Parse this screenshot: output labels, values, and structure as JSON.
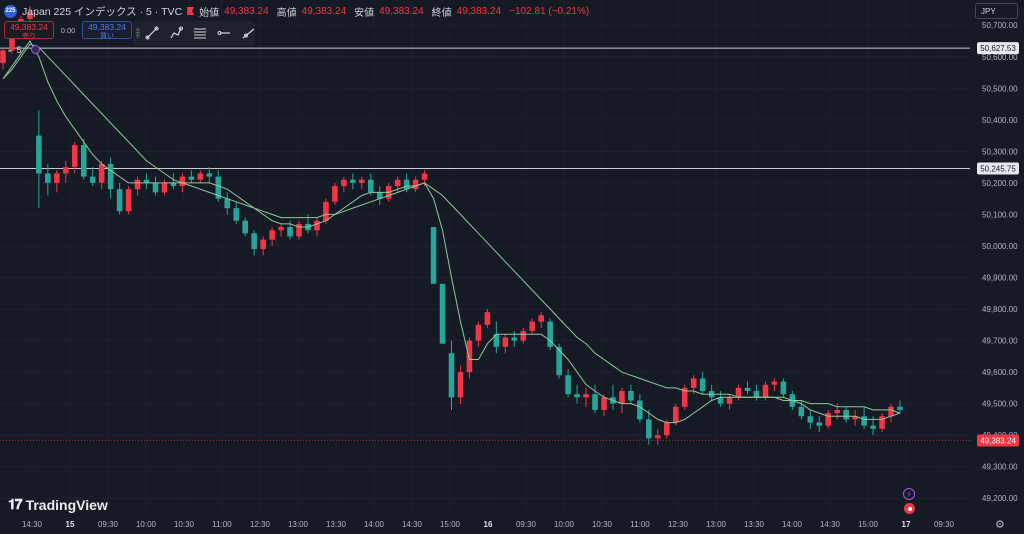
{
  "header": {
    "logo_text": "225",
    "symbol": "Japan 225 インデックス · 5 · TVC",
    "open_label": "始値",
    "open_value": "49,383.24",
    "high_label": "高値",
    "high_value": "49,383.24",
    "low_label": "安値",
    "low_value": "49,383.24",
    "close_label": "終値",
    "close_value": "49,383.24",
    "change": "−102.81 (−0.21%)"
  },
  "trade": {
    "sell_price": "49,383.24",
    "sell_label": "売り",
    "spread": "0.00",
    "buy_price": "49,383.24",
    "buy_label": "買い"
  },
  "indicator": {
    "label": "5"
  },
  "toolbar": {
    "tools": [
      "trend-line-icon",
      "path-icon",
      "fib-icon",
      "horizontal-ray-icon",
      "ray-icon"
    ]
  },
  "currency": "JPY",
  "brand": "TradingView",
  "colors": {
    "up": "#f23645",
    "down": "#26a69a",
    "ma": "#8fc79a",
    "bg": "#161a25"
  },
  "chart_data": {
    "type": "candlestick",
    "symbol": "Japan 225",
    "ylim": [
      49150,
      50780
    ],
    "y_ticks": [
      "50,700.00",
      "50,600.00",
      "50,500.00",
      "50,400.00",
      "50,300.00",
      "50,200.00",
      "50,100.00",
      "50,000.00",
      "49,900.00",
      "49,800.00",
      "49,700.00",
      "49,600.00",
      "49,500.00",
      "49,400.00",
      "49,300.00",
      "49,200.00"
    ],
    "x_ticks": [
      "14:30",
      "15",
      "09:30",
      "10:00",
      "10:30",
      "11:00",
      "12:30",
      "13:00",
      "13:30",
      "14:00",
      "14:30",
      "15:00",
      "16",
      "09:30",
      "10:00",
      "10:30",
      "11:00",
      "12:30",
      "13:00",
      "13:30",
      "14:00",
      "14:30",
      "15:00",
      "17",
      "09:30"
    ],
    "horizontal_lines": [
      {
        "value": 50627.53,
        "label": "50,627.53"
      },
      {
        "value": 50245.75,
        "label": "50,245.75"
      }
    ],
    "last_price": {
      "value": 49383.24,
      "label": "49,383.24"
    },
    "ohlc": [
      [
        50580,
        50630,
        50560,
        50620
      ],
      [
        50620,
        50690,
        50610,
        50680
      ],
      [
        50680,
        50730,
        50670,
        50720
      ],
      [
        50720,
        50760,
        50700,
        50740
      ],
      [
        50350,
        50430,
        50120,
        50230
      ],
      [
        50230,
        50260,
        50160,
        50200
      ],
      [
        50200,
        50240,
        50170,
        50230
      ],
      [
        50230,
        50270,
        50200,
        50250
      ],
      [
        50250,
        50330,
        50230,
        50320
      ],
      [
        50320,
        50340,
        50210,
        50220
      ],
      [
        50220,
        50250,
        50190,
        50200
      ],
      [
        50200,
        50270,
        50180,
        50260
      ],
      [
        50260,
        50280,
        50150,
        50180
      ],
      [
        50180,
        50200,
        50100,
        50110
      ],
      [
        50110,
        50190,
        50100,
        50180
      ],
      [
        50180,
        50220,
        50160,
        50210
      ],
      [
        50210,
        50230,
        50180,
        50200
      ],
      [
        50200,
        50220,
        50160,
        50170
      ],
      [
        50170,
        50210,
        50160,
        50200
      ],
      [
        50200,
        50230,
        50180,
        50190
      ],
      [
        50190,
        50230,
        50170,
        50220
      ],
      [
        50220,
        50240,
        50200,
        50210
      ],
      [
        50210,
        50240,
        50200,
        50230
      ],
      [
        50230,
        50250,
        50200,
        50220
      ],
      [
        50220,
        50240,
        50140,
        50150
      ],
      [
        50150,
        50170,
        50100,
        50120
      ],
      [
        50120,
        50140,
        50070,
        50080
      ],
      [
        50080,
        50090,
        50030,
        50040
      ],
      [
        50040,
        50050,
        49970,
        49990
      ],
      [
        49990,
        50030,
        49970,
        50020
      ],
      [
        50020,
        50060,
        50000,
        50050
      ],
      [
        50050,
        50070,
        50030,
        50060
      ],
      [
        50060,
        50080,
        50020,
        50030
      ],
      [
        50030,
        50080,
        50020,
        50070
      ],
      [
        50070,
        50100,
        50040,
        50050
      ],
      [
        50050,
        50090,
        50030,
        50080
      ],
      [
        50080,
        50150,
        50070,
        50140
      ],
      [
        50140,
        50200,
        50130,
        50190
      ],
      [
        50190,
        50220,
        50170,
        50210
      ],
      [
        50210,
        50230,
        50180,
        50200
      ],
      [
        50200,
        50220,
        50180,
        50210
      ],
      [
        50210,
        50230,
        50160,
        50170
      ],
      [
        50170,
        50190,
        50130,
        50150
      ],
      [
        50150,
        50200,
        50140,
        50190
      ],
      [
        50190,
        50220,
        50170,
        50210
      ],
      [
        50210,
        50230,
        50170,
        50180
      ],
      [
        50180,
        50220,
        50170,
        50210
      ],
      [
        50210,
        50240,
        50190,
        50230
      ],
      [
        50060,
        50060,
        49880,
        49880
      ],
      [
        49880,
        49880,
        49690,
        49690
      ],
      [
        49660,
        49700,
        49480,
        49520
      ],
      [
        49520,
        49620,
        49500,
        49600
      ],
      [
        49600,
        49710,
        49580,
        49700
      ],
      [
        49700,
        49760,
        49680,
        49750
      ],
      [
        49750,
        49800,
        49740,
        49790
      ],
      [
        49720,
        49760,
        49660,
        49680
      ],
      [
        49680,
        49720,
        49660,
        49710
      ],
      [
        49710,
        49730,
        49680,
        49700
      ],
      [
        49700,
        49740,
        49690,
        49730
      ],
      [
        49730,
        49770,
        49720,
        49760
      ],
      [
        49760,
        49790,
        49740,
        49780
      ],
      [
        49760,
        49770,
        49670,
        49680
      ],
      [
        49680,
        49690,
        49580,
        49590
      ],
      [
        49590,
        49610,
        49520,
        49530
      ],
      [
        49530,
        49560,
        49500,
        49520
      ],
      [
        49520,
        49550,
        49490,
        49530
      ],
      [
        49530,
        49560,
        49470,
        49480
      ],
      [
        49480,
        49530,
        49460,
        49520
      ],
      [
        49520,
        49560,
        49480,
        49500
      ],
      [
        49500,
        49550,
        49470,
        49540
      ],
      [
        49540,
        49560,
        49500,
        49510
      ],
      [
        49510,
        49530,
        49440,
        49450
      ],
      [
        49450,
        49480,
        49370,
        49390
      ],
      [
        49390,
        49420,
        49370,
        49400
      ],
      [
        49400,
        49450,
        49390,
        49440
      ],
      [
        49440,
        49500,
        49430,
        49490
      ],
      [
        49490,
        49560,
        49480,
        49550
      ],
      [
        49550,
        49590,
        49530,
        49580
      ],
      [
        49580,
        49600,
        49530,
        49540
      ],
      [
        49540,
        49560,
        49510,
        49520
      ],
      [
        49520,
        49540,
        49490,
        49500
      ],
      [
        49500,
        49530,
        49480,
        49520
      ],
      [
        49520,
        49560,
        49510,
        49550
      ],
      [
        49550,
        49570,
        49530,
        49540
      ],
      [
        49540,
        49560,
        49510,
        49520
      ],
      [
        49520,
        49570,
        49510,
        49560
      ],
      [
        49560,
        49580,
        49540,
        49570
      ],
      [
        49570,
        49580,
        49520,
        49530
      ],
      [
        49530,
        49540,
        49480,
        49490
      ],
      [
        49490,
        49510,
        49450,
        49460
      ],
      [
        49460,
        49480,
        49420,
        49440
      ],
      [
        49440,
        49460,
        49410,
        49430
      ],
      [
        49430,
        49480,
        49420,
        49470
      ],
      [
        49470,
        49500,
        49450,
        49480
      ],
      [
        49480,
        49490,
        49440,
        49450
      ],
      [
        49450,
        49480,
        49430,
        49460
      ],
      [
        49460,
        49490,
        49420,
        49430
      ],
      [
        49430,
        49460,
        49400,
        49420
      ],
      [
        49420,
        49470,
        49410,
        49460
      ],
      [
        49460,
        49500,
        49440,
        49490
      ],
      [
        49490,
        49510,
        49470,
        49480
      ]
    ],
    "moving_average": {
      "label": "5",
      "values": [
        50530,
        50570,
        50610,
        50650,
        50600,
        50520,
        50460,
        50410,
        50370,
        50330,
        50290,
        50260,
        50240,
        50220,
        50200,
        50200,
        50200,
        50200,
        50200,
        50200,
        50200,
        50200,
        50200,
        50200,
        50190,
        50180,
        50160,
        50140,
        50120,
        50100,
        50080,
        50070,
        50070,
        50060,
        50060,
        50070,
        50080,
        50100,
        50120,
        50140,
        50160,
        50170,
        50170,
        50170,
        50180,
        50190,
        50190,
        50200,
        50150,
        50050,
        49900,
        49760,
        49640,
        49640,
        49690,
        49720,
        49720,
        49720,
        49720,
        49720,
        49720,
        49700,
        49670,
        49640,
        49600,
        49560,
        49540,
        49520,
        49510,
        49500,
        49500,
        49490,
        49470,
        49450,
        49440,
        49440,
        49450,
        49470,
        49490,
        49510,
        49520,
        49520,
        49520,
        49520,
        49520,
        49520,
        49520,
        49520,
        49510,
        49500,
        49480,
        49470,
        49460,
        49460,
        49460,
        49460,
        49450,
        49450,
        49450,
        49460,
        49470
      ]
    },
    "ma_long": {
      "values": [
        50530,
        50560,
        50600,
        50640,
        50630,
        50600,
        50570,
        50540,
        50510,
        50480,
        50450,
        50420,
        50390,
        50360,
        50330,
        50300,
        50270,
        50250,
        50230,
        50210,
        50200,
        50190,
        50180,
        50170,
        50160,
        50150,
        50140,
        50130,
        50120,
        50110,
        50100,
        50090,
        50090,
        50090,
        50090,
        50090,
        50100,
        50100,
        50110,
        50120,
        50130,
        50140,
        50150,
        50160,
        50170,
        50180,
        50190,
        50200,
        50180,
        50160,
        50130,
        50100,
        50070,
        50040,
        50010,
        49980,
        49950,
        49920,
        49890,
        49860,
        49830,
        49800,
        49770,
        49740,
        49710,
        49690,
        49660,
        49640,
        49620,
        49600,
        49590,
        49580,
        49570,
        49560,
        49550,
        49550,
        49540,
        49540,
        49530,
        49530,
        49530,
        49530,
        49520,
        49520,
        49520,
        49520,
        49520,
        49510,
        49510,
        49510,
        49500,
        49500,
        49500,
        49490,
        49490,
        49490,
        49490,
        49480,
        49480,
        49480,
        49470
      ]
    }
  }
}
